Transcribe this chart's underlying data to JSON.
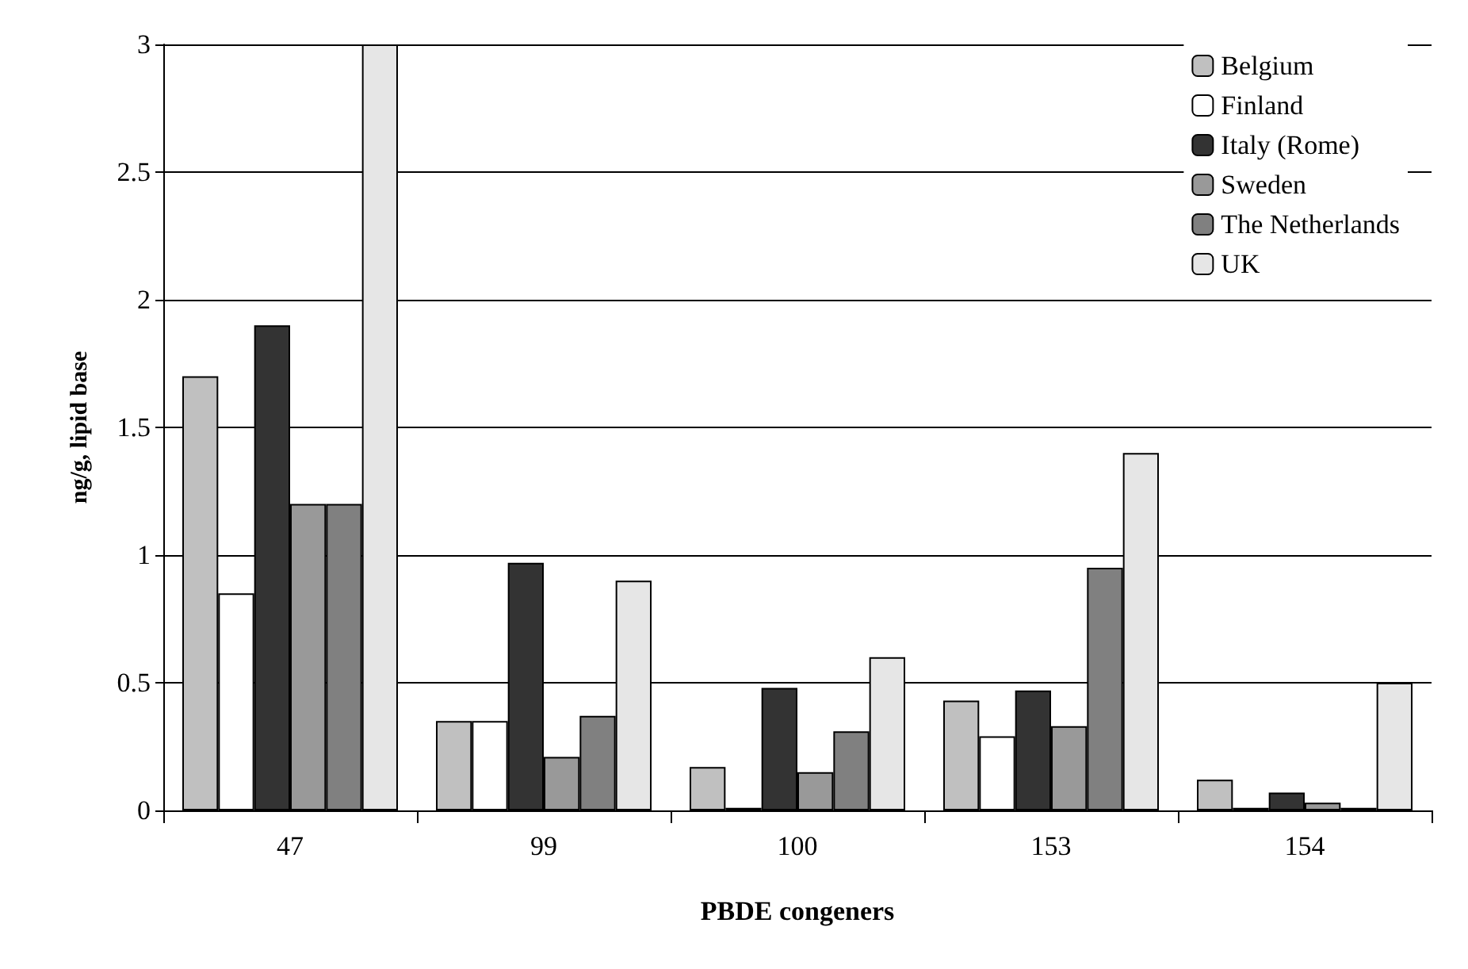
{
  "chart_data": {
    "type": "bar",
    "xlabel": "PBDE congeners",
    "ylabel": "ng/g, lipid base",
    "categories": [
      "47",
      "99",
      "100",
      "153",
      "154"
    ],
    "series": [
      {
        "name": "Belgium",
        "color": "#c0c0c0",
        "values": [
          1.7,
          0.35,
          0.17,
          0.43,
          0.12
        ]
      },
      {
        "name": "Finland",
        "color": "#ffffff",
        "values": [
          0.85,
          0.35,
          0.01,
          0.29,
          0.01
        ]
      },
      {
        "name": "Italy (Rome)",
        "color": "#333333",
        "values": [
          1.9,
          0.97,
          0.48,
          0.47,
          0.07
        ]
      },
      {
        "name": "Sweden",
        "color": "#999999",
        "values": [
          1.2,
          0.21,
          0.15,
          0.33,
          0.03
        ]
      },
      {
        "name": "The Netherlands",
        "color": "#808080",
        "values": [
          1.2,
          0.37,
          0.31,
          0.95,
          0.01
        ]
      },
      {
        "name": "UK",
        "color": "#e6e6e6",
        "values": [
          3.0,
          0.9,
          0.6,
          1.4,
          0.5
        ]
      }
    ],
    "ylim": [
      0,
      3
    ],
    "yticks": [
      0,
      0.5,
      1,
      1.5,
      2,
      2.5,
      3
    ],
    "grid": "y",
    "legend": "top right"
  }
}
